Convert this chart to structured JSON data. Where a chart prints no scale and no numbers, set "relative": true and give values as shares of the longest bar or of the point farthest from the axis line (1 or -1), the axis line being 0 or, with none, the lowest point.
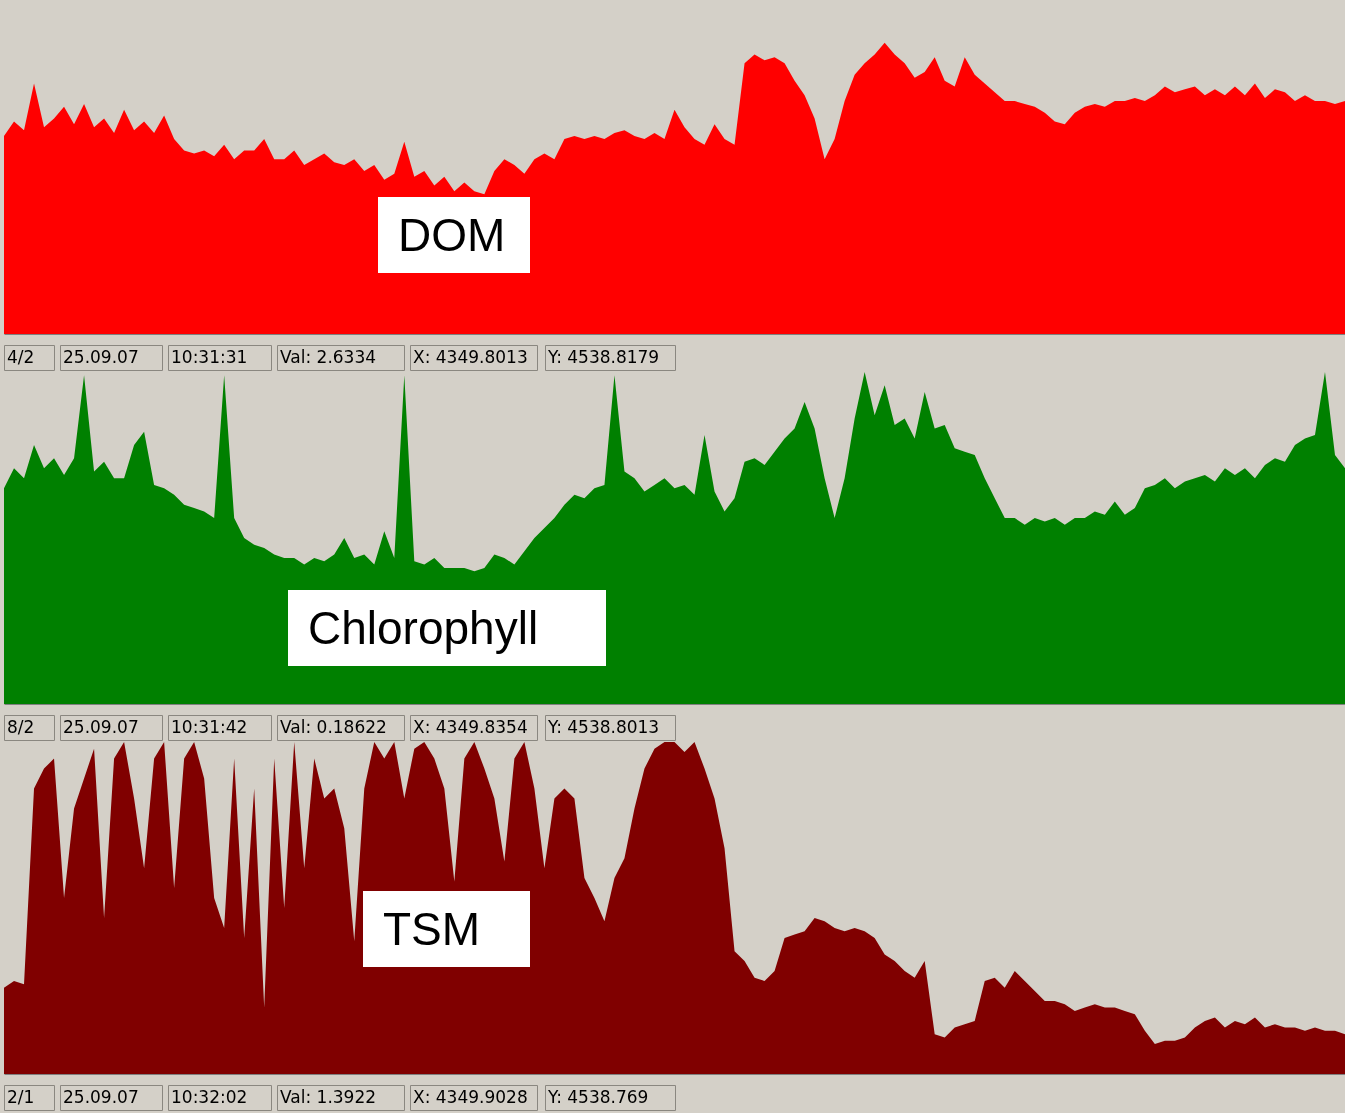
{
  "chart_data": [
    {
      "type": "area",
      "relative": true,
      "categories": [
        null,
        null,
        null,
        null,
        null,
        null,
        null,
        null,
        null,
        null,
        null,
        null,
        null,
        null,
        null,
        null,
        null,
        null,
        null,
        null,
        null,
        null,
        null,
        null,
        null,
        null,
        null,
        null,
        null,
        null,
        null,
        null,
        null,
        null,
        null,
        null,
        null,
        null,
        null,
        null,
        null,
        null,
        null,
        null,
        null,
        null,
        null,
        null,
        null,
        null,
        null,
        null,
        null,
        null,
        null,
        null,
        null,
        null,
        null,
        null,
        null,
        null,
        null,
        null,
        null,
        null,
        null,
        null,
        null,
        null,
        null,
        null,
        null,
        null,
        null,
        null,
        null,
        null,
        null,
        null,
        null,
        null,
        null,
        null,
        null,
        null,
        null,
        null,
        null,
        null,
        null,
        null,
        null,
        null,
        null,
        null,
        null,
        null,
        null,
        null,
        null,
        null,
        null,
        null,
        null,
        null,
        null,
        null,
        null,
        null,
        null,
        null,
        null,
        null,
        null,
        null,
        null,
        null,
        null,
        null,
        null,
        null,
        null,
        null,
        null,
        null,
        null,
        null,
        null,
        null,
        null,
        null,
        null,
        null,
        null
      ],
      "series": [
        {
          "name": "DOM",
          "color": "#ff0000",
          "values": [
            0.68,
            0.73,
            0.7,
            0.86,
            0.71,
            0.74,
            0.78,
            0.72,
            0.79,
            0.71,
            0.74,
            0.69,
            0.77,
            0.7,
            0.73,
            0.69,
            0.75,
            0.67,
            0.63,
            0.62,
            0.63,
            0.61,
            0.65,
            0.6,
            0.63,
            0.63,
            0.67,
            0.6,
            0.6,
            0.63,
            0.58,
            0.6,
            0.62,
            0.59,
            0.58,
            0.6,
            0.56,
            0.58,
            0.53,
            0.55,
            0.66,
            0.54,
            0.56,
            0.51,
            0.54,
            0.49,
            0.52,
            0.49,
            0.48,
            0.56,
            0.6,
            0.58,
            0.55,
            0.6,
            0.62,
            0.6,
            0.67,
            0.68,
            0.67,
            0.68,
            0.67,
            0.69,
            0.7,
            0.68,
            0.67,
            0.69,
            0.67,
            0.77,
            0.71,
            0.67,
            0.65,
            0.72,
            0.67,
            0.65,
            0.93,
            0.96,
            0.94,
            0.95,
            0.93,
            0.87,
            0.82,
            0.74,
            0.6,
            0.67,
            0.8,
            0.89,
            0.93,
            0.96,
            1.0,
            0.96,
            0.93,
            0.88,
            0.9,
            0.95,
            0.87,
            0.85,
            0.95,
            0.89,
            0.86,
            0.83,
            0.8,
            0.8,
            0.79,
            0.78,
            0.76,
            0.73,
            0.72,
            0.76,
            0.78,
            0.79,
            0.78,
            0.8,
            0.8,
            0.81,
            0.8,
            0.82,
            0.85,
            0.83,
            0.84,
            0.85,
            0.82,
            0.84,
            0.82,
            0.85,
            0.82,
            0.86,
            0.81,
            0.84,
            0.83,
            0.8,
            0.82,
            0.8,
            0.8,
            0.79,
            0.8
          ]
        }
      ],
      "annotations": [
        "4/2",
        "25.09.07",
        "10:31:31",
        "Val: 2.6334",
        "X: 4349.8013",
        "Y: 4538.8179"
      ]
    },
    {
      "type": "area",
      "relative": true,
      "categories": [
        null,
        null,
        null,
        null,
        null,
        null,
        null,
        null,
        null,
        null,
        null,
        null,
        null,
        null,
        null,
        null,
        null,
        null,
        null,
        null,
        null,
        null,
        null,
        null,
        null,
        null,
        null,
        null,
        null,
        null,
        null,
        null,
        null,
        null,
        null,
        null,
        null,
        null,
        null,
        null,
        null,
        null,
        null,
        null,
        null,
        null,
        null,
        null,
        null,
        null,
        null,
        null,
        null,
        null,
        null,
        null,
        null,
        null,
        null,
        null,
        null,
        null,
        null,
        null,
        null,
        null,
        null,
        null,
        null,
        null,
        null,
        null,
        null,
        null,
        null,
        null,
        null,
        null,
        null,
        null,
        null,
        null,
        null,
        null,
        null,
        null,
        null,
        null,
        null,
        null,
        null,
        null,
        null,
        null,
        null,
        null,
        null,
        null,
        null,
        null,
        null,
        null,
        null,
        null,
        null,
        null,
        null,
        null,
        null,
        null,
        null,
        null,
        null,
        null,
        null,
        null,
        null,
        null,
        null,
        null,
        null,
        null,
        null,
        null,
        null,
        null,
        null,
        null,
        null,
        null,
        null,
        null,
        null,
        null,
        null
      ],
      "series": [
        {
          "name": "Chlorophyll",
          "color": "#008000",
          "values": [
            0.65,
            0.71,
            0.68,
            0.78,
            0.71,
            0.74,
            0.69,
            0.74,
            0.99,
            0.7,
            0.73,
            0.68,
            0.68,
            0.78,
            0.82,
            0.66,
            0.65,
            0.63,
            0.6,
            0.59,
            0.58,
            0.56,
            0.99,
            0.56,
            0.5,
            0.48,
            0.47,
            0.45,
            0.44,
            0.44,
            0.42,
            0.44,
            0.43,
            0.45,
            0.5,
            0.44,
            0.45,
            0.42,
            0.52,
            0.44,
            0.99,
            0.43,
            0.42,
            0.44,
            0.41,
            0.41,
            0.41,
            0.4,
            0.41,
            0.45,
            0.44,
            0.42,
            0.46,
            0.5,
            0.53,
            0.56,
            0.6,
            0.63,
            0.62,
            0.65,
            0.66,
            0.99,
            0.7,
            0.68,
            0.64,
            0.66,
            0.68,
            0.65,
            0.66,
            0.63,
            0.81,
            0.64,
            0.58,
            0.62,
            0.73,
            0.74,
            0.72,
            0.76,
            0.8,
            0.83,
            0.91,
            0.83,
            0.68,
            0.56,
            0.68,
            0.86,
            1.0,
            0.87,
            0.96,
            0.84,
            0.86,
            0.8,
            0.94,
            0.83,
            0.84,
            0.77,
            0.76,
            0.75,
            0.68,
            0.62,
            0.56,
            0.56,
            0.54,
            0.56,
            0.55,
            0.56,
            0.54,
            0.56,
            0.56,
            0.58,
            0.57,
            0.61,
            0.57,
            0.59,
            0.65,
            0.66,
            0.68,
            0.65,
            0.67,
            0.68,
            0.69,
            0.67,
            0.71,
            0.69,
            0.71,
            0.68,
            0.72,
            0.74,
            0.73,
            0.78,
            0.8,
            0.81,
            1.0,
            0.75,
            0.71
          ]
        }
      ],
      "annotations": [
        "8/2",
        "25.09.07",
        "10:31:42",
        "Val: 0.18622",
        "X: 4349.8354",
        "Y: 4538.8013"
      ]
    },
    {
      "type": "area",
      "relative": true,
      "categories": [
        null,
        null,
        null,
        null,
        null,
        null,
        null,
        null,
        null,
        null,
        null,
        null,
        null,
        null,
        null,
        null,
        null,
        null,
        null,
        null,
        null,
        null,
        null,
        null,
        null,
        null,
        null,
        null,
        null,
        null,
        null,
        null,
        null,
        null,
        null,
        null,
        null,
        null,
        null,
        null,
        null,
        null,
        null,
        null,
        null,
        null,
        null,
        null,
        null,
        null,
        null,
        null,
        null,
        null,
        null,
        null,
        null,
        null,
        null,
        null,
        null,
        null,
        null,
        null,
        null,
        null,
        null,
        null,
        null,
        null,
        null,
        null,
        null,
        null,
        null,
        null,
        null,
        null,
        null,
        null,
        null,
        null,
        null,
        null,
        null,
        null,
        null,
        null,
        null,
        null,
        null,
        null,
        null,
        null,
        null,
        null,
        null,
        null,
        null,
        null,
        null,
        null,
        null,
        null,
        null,
        null,
        null,
        null,
        null,
        null,
        null,
        null,
        null,
        null,
        null,
        null,
        null,
        null,
        null,
        null,
        null,
        null,
        null,
        null,
        null,
        null,
        null,
        null,
        null,
        null,
        null,
        null,
        null,
        null,
        null
      ],
      "series": [
        {
          "name": "TSM",
          "color": "#800000",
          "values": [
            0.26,
            0.28,
            0.27,
            0.86,
            0.92,
            0.95,
            0.53,
            0.8,
            0.89,
            0.98,
            0.47,
            0.95,
            1.0,
            0.83,
            0.62,
            0.95,
            1.0,
            0.56,
            0.95,
            1.0,
            0.89,
            0.53,
            0.44,
            0.95,
            0.41,
            0.86,
            0.2,
            0.95,
            0.5,
            1.0,
            0.62,
            0.95,
            0.83,
            0.86,
            0.74,
            0.4,
            0.86,
            1.0,
            0.95,
            1.0,
            0.83,
            0.98,
            1.0,
            0.95,
            0.86,
            0.58,
            0.95,
            1.0,
            0.92,
            0.83,
            0.64,
            0.95,
            1.0,
            0.86,
            0.62,
            0.83,
            0.86,
            0.83,
            0.59,
            0.53,
            0.46,
            0.59,
            0.65,
            0.8,
            0.92,
            0.98,
            1.0,
            1.0,
            0.97,
            1.0,
            0.92,
            0.83,
            0.68,
            0.37,
            0.34,
            0.29,
            0.28,
            0.31,
            0.41,
            0.42,
            0.43,
            0.47,
            0.46,
            0.44,
            0.43,
            0.44,
            0.43,
            0.41,
            0.36,
            0.34,
            0.31,
            0.29,
            0.34,
            0.12,
            0.11,
            0.14,
            0.15,
            0.16,
            0.28,
            0.29,
            0.26,
            0.31,
            0.28,
            0.25,
            0.22,
            0.22,
            0.21,
            0.19,
            0.2,
            0.21,
            0.2,
            0.2,
            0.19,
            0.18,
            0.13,
            0.09,
            0.1,
            0.1,
            0.11,
            0.14,
            0.16,
            0.17,
            0.14,
            0.16,
            0.15,
            0.17,
            0.14,
            0.15,
            0.14,
            0.14,
            0.13,
            0.14,
            0.13,
            0.13,
            0.12
          ]
        }
      ],
      "annotations": [
        "2/1",
        "25.09.07",
        "10:32:02",
        "Val: 1.3922",
        "X: 4349.9028",
        "Y: 4538.769"
      ]
    }
  ]
}
